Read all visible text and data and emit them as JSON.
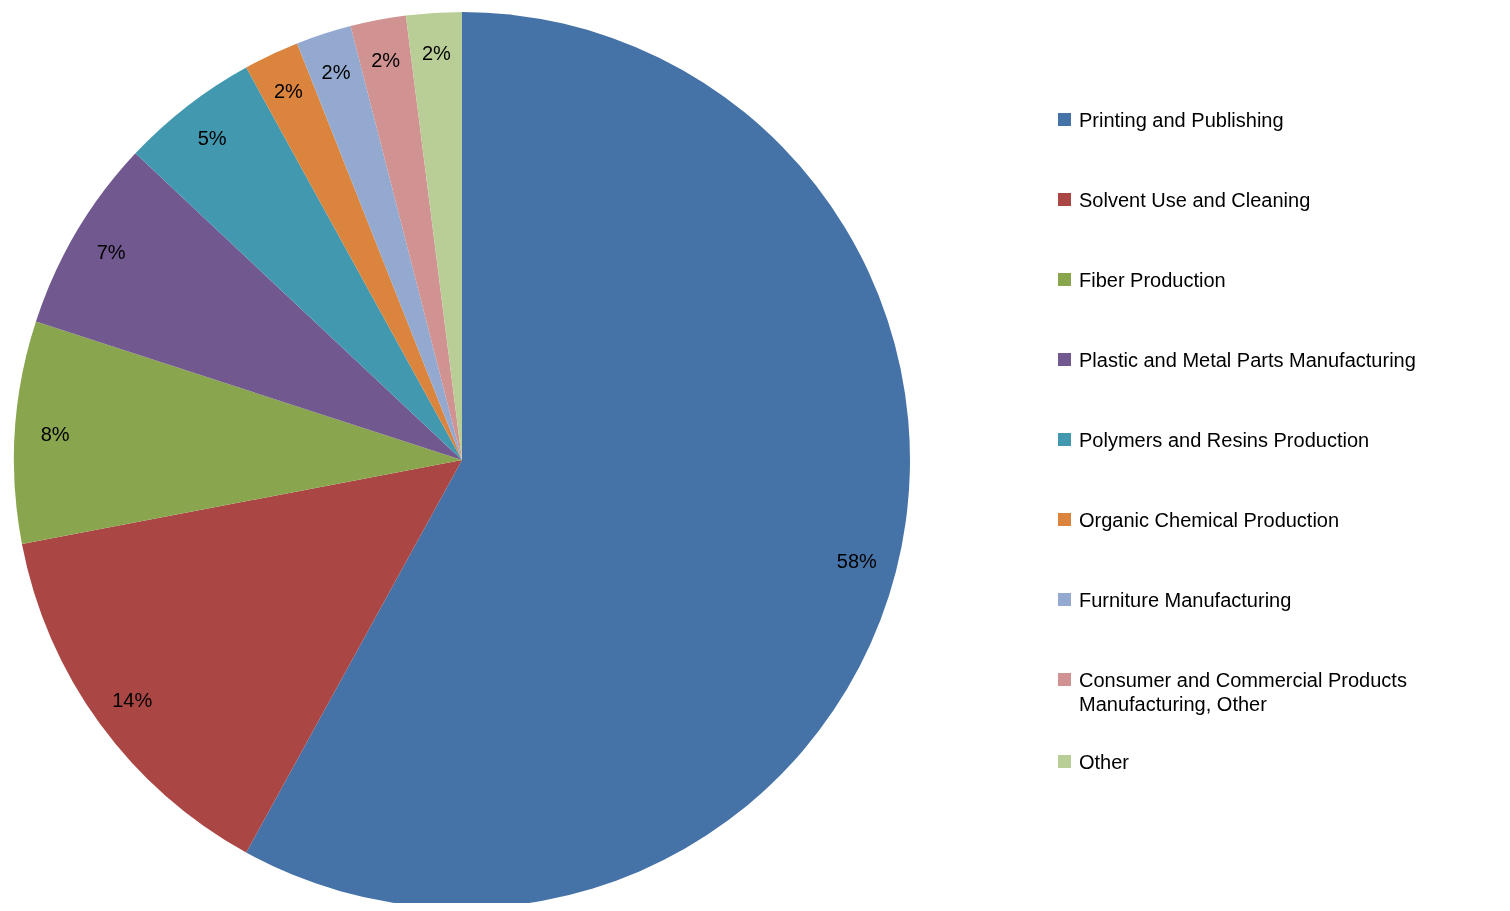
{
  "chart_data": {
    "type": "pie",
    "categories": [
      "Printing and Publishing",
      "Solvent Use and Cleaning",
      "Fiber Production",
      "Plastic and Metal Parts Manufacturing",
      "Polymers and Resins Production",
      "Organic Chemical Production",
      "Furniture Manufacturing",
      "Consumer and Commercial Products Manufacturing, Other",
      "Other"
    ],
    "values": [
      58,
      14,
      8,
      7,
      5,
      2,
      2,
      2,
      2
    ],
    "value_labels": [
      "58%",
      "14%",
      "8%",
      "7%",
      "5%",
      "2%",
      "2%",
      "2%",
      "2%"
    ],
    "colors": [
      "#4572a7",
      "#aa4643",
      "#89a54e",
      "#71588f",
      "#4198af",
      "#db843d",
      "#93a9cf",
      "#d19392",
      "#b9cd96"
    ],
    "legend": "right"
  }
}
